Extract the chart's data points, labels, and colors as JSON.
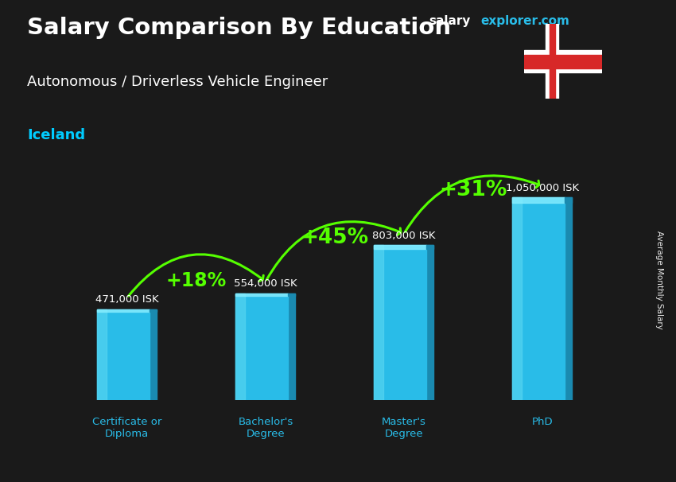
{
  "title_bold": "Salary Comparison By Education",
  "subtitle": "Autonomous / Driverless Vehicle Engineer",
  "country": "Iceland",
  "ylabel": "Average Monthly Salary",
  "categories": [
    "Certificate or\nDiploma",
    "Bachelor's\nDegree",
    "Master's\nDegree",
    "PhD"
  ],
  "values": [
    471000,
    554000,
    803000,
    1050000
  ],
  "value_labels": [
    "471,000 ISK",
    "554,000 ISK",
    "803,000 ISK",
    "1,050,000 ISK"
  ],
  "pct_labels": [
    "+18%",
    "+45%",
    "+31%"
  ],
  "bar_color": "#29bce8",
  "bar_highlight": "#55d4f0",
  "bar_shadow": "#1a8ab0",
  "pct_color": "#55ff00",
  "title_color": "#ffffff",
  "subtitle_color": "#ffffff",
  "country_color": "#00ccff",
  "value_label_color": "#ffffff",
  "xlabel_color": "#29bce8",
  "bg_color": "#1a1a1a",
  "watermark_salary_color": "#ffffff",
  "watermark_explorer_color": "#29bce8",
  "ylim": [
    0,
    1300000
  ],
  "bar_width": 0.38
}
